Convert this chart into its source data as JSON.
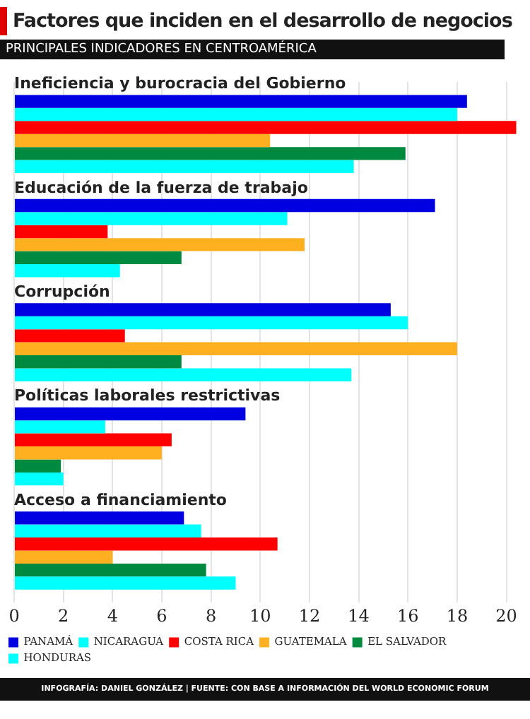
{
  "chart_data": {
    "type": "bar",
    "orientation": "horizontal",
    "title": "Factores que inciden en el desarrollo de negocios",
    "subtitle": "PRINCIPALES INDICADORES EN CENTROAMÉRICA",
    "categories": [
      "Ineficiencia y burocracia del Gobierno",
      "Educación de la fuerza de trabajo",
      "Corrupción",
      "Políticas laborales restrictivas",
      "Acceso a financiamiento"
    ],
    "series": [
      {
        "name": "PANAMÁ",
        "color": "#0000e0",
        "values": [
          18.4,
          17.1,
          15.3,
          9.4,
          6.9
        ]
      },
      {
        "name": "NICARAGUA",
        "color": "#00ffff",
        "values": [
          18.0,
          11.1,
          16.0,
          3.7,
          7.6
        ]
      },
      {
        "name": "COSTA RICA",
        "color": "#ff0000",
        "values": [
          20.4,
          3.8,
          4.5,
          6.4,
          10.7
        ]
      },
      {
        "name": "GUATEMALA",
        "color": "#ffb020",
        "values": [
          10.4,
          11.8,
          18.0,
          6.0,
          4.0
        ]
      },
      {
        "name": "EL SALVADOR",
        "color": "#008a40",
        "values": [
          15.9,
          6.8,
          6.8,
          1.9,
          7.8
        ]
      },
      {
        "name": "HONDURAS",
        "color": "#00ffff",
        "values": [
          13.8,
          4.3,
          13.7,
          2.0,
          9.0
        ]
      }
    ],
    "xlim": [
      0,
      20.5
    ],
    "xticks": [
      0,
      2,
      4,
      6,
      8,
      10,
      12,
      14,
      16,
      18,
      20
    ],
    "grid": "x",
    "legend": "bottom",
    "annotations": [
      "INFOGRAFÍA: DANIEL GONZÁLEZ | FUENTE: CON BASE A INFORMACIÓN DEL WORLD ECONOMIC FORUM"
    ]
  }
}
